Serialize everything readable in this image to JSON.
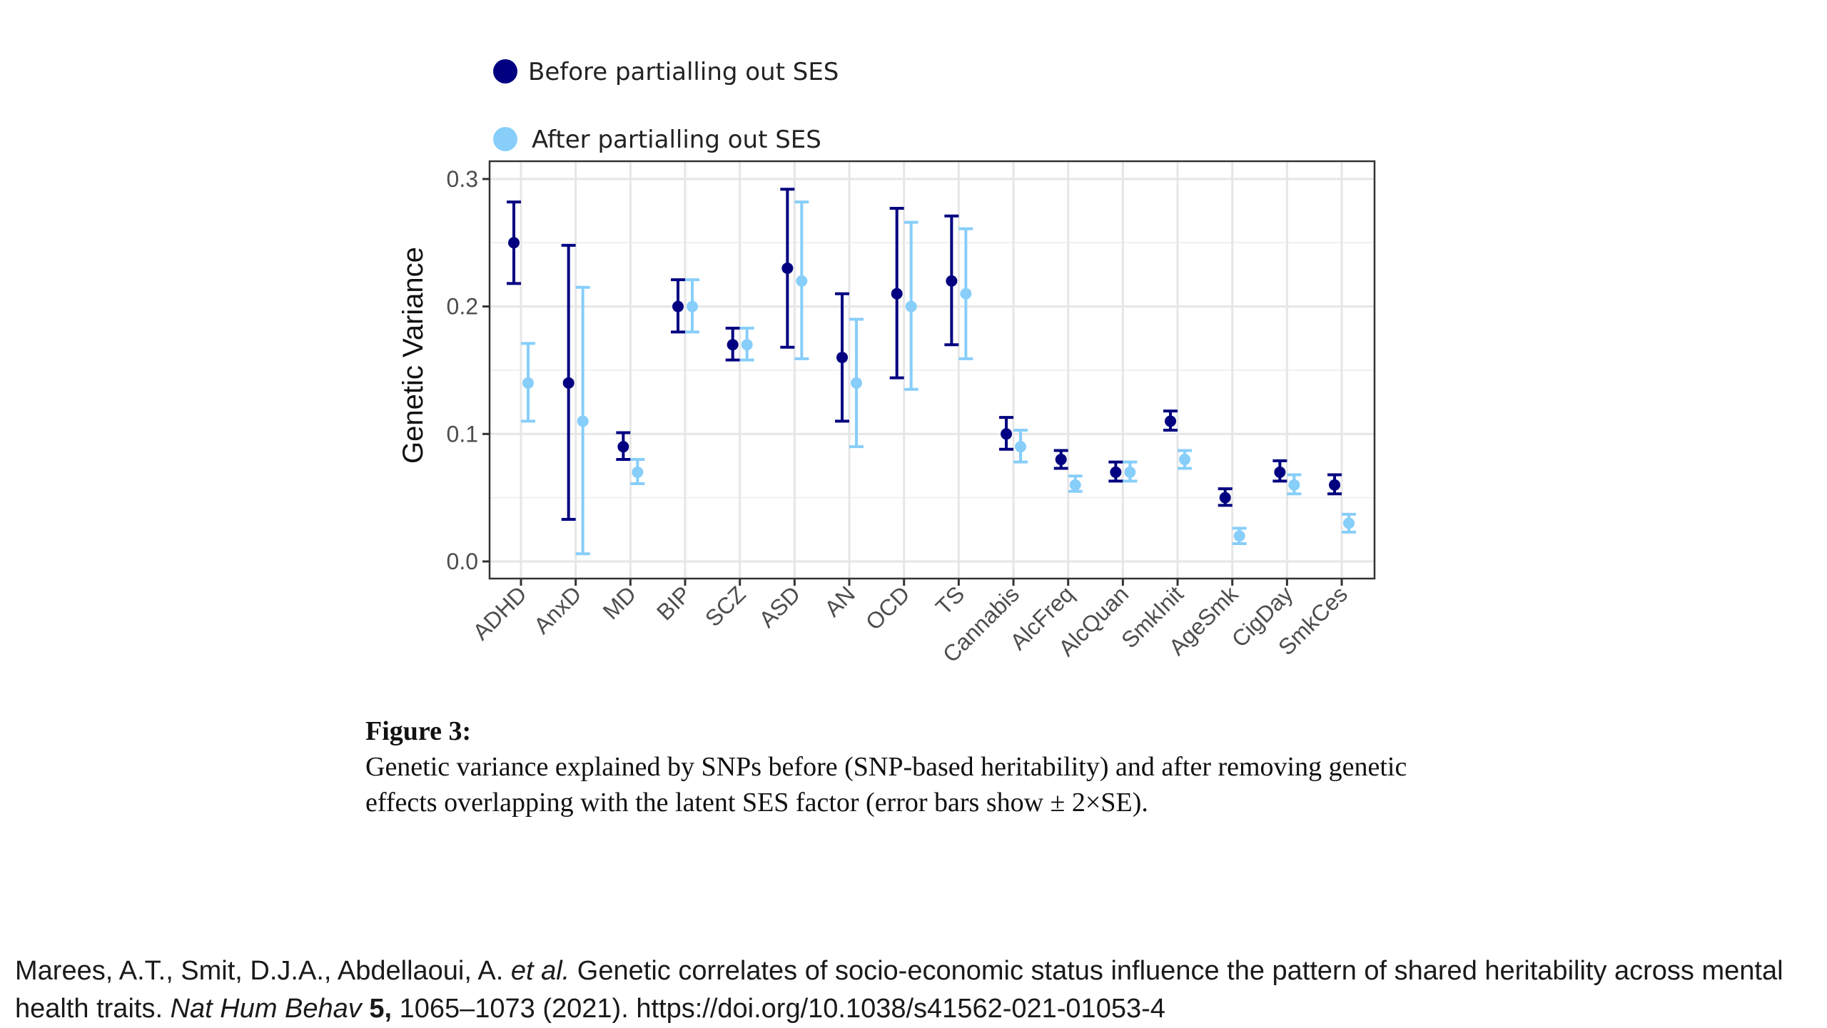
{
  "legend": {
    "items": [
      {
        "label": "Before partialling out SES",
        "color": "#000080"
      },
      {
        "label": "After partialling out SES",
        "color": "#87cefa"
      }
    ]
  },
  "chart_data": {
    "type": "scatter",
    "subtype": "point-with-errorbars",
    "title": "",
    "xlabel": "",
    "ylabel": "Genetic Variance",
    "ylim": [
      0.0,
      0.3
    ],
    "yticks": [
      0.0,
      0.1,
      0.2,
      0.3
    ],
    "ytick_labels": [
      "0.0",
      "0.1",
      "0.2",
      "0.3"
    ],
    "grid": true,
    "legend_position": "top-left (above plot)",
    "categories": [
      "ADHD",
      "AnxD",
      "MD",
      "BIP",
      "SCZ",
      "ASD",
      "AN",
      "OCD",
      "TS",
      "Cannabis",
      "AlcFreq",
      "AlcQuan",
      "SmkInit",
      "AgeSmk",
      "CigDay",
      "SmkCes"
    ],
    "series": [
      {
        "name": "Before partialling out SES",
        "color": "#000080",
        "values": [
          0.25,
          0.14,
          0.09,
          0.2,
          0.17,
          0.23,
          0.16,
          0.21,
          0.22,
          0.1,
          0.08,
          0.07,
          0.11,
          0.05,
          0.07,
          0.06
        ],
        "lower": [
          0.218,
          0.033,
          0.08,
          0.18,
          0.158,
          0.168,
          0.11,
          0.144,
          0.17,
          0.088,
          0.073,
          0.063,
          0.103,
          0.044,
          0.063,
          0.053
        ],
        "upper": [
          0.282,
          0.248,
          0.101,
          0.221,
          0.183,
          0.292,
          0.21,
          0.277,
          0.271,
          0.113,
          0.087,
          0.078,
          0.118,
          0.057,
          0.079,
          0.068
        ]
      },
      {
        "name": "After partialling out SES",
        "color": "#87cefa",
        "values": [
          0.14,
          0.11,
          0.07,
          0.2,
          0.17,
          0.22,
          0.14,
          0.2,
          0.21,
          0.09,
          0.06,
          0.07,
          0.08,
          0.02,
          0.06,
          0.03
        ],
        "lower": [
          0.11,
          0.006,
          0.061,
          0.18,
          0.158,
          0.159,
          0.09,
          0.135,
          0.159,
          0.078,
          0.055,
          0.063,
          0.073,
          0.014,
          0.053,
          0.023
        ],
        "upper": [
          0.171,
          0.215,
          0.08,
          0.221,
          0.183,
          0.282,
          0.19,
          0.266,
          0.261,
          0.103,
          0.067,
          0.078,
          0.087,
          0.026,
          0.068,
          0.037
        ]
      }
    ],
    "error_bars": "± 2×SE"
  },
  "caption": {
    "label": "Figure 3:",
    "text": "Genetic variance explained by SNPs before (SNP-based heritability) and after removing genetic effects overlapping with the latent SES factor (error bars show ± 2×SE)."
  },
  "citation": {
    "authors": "Marees, A.T., Smit, D.J.A., Abdellaoui, A. ",
    "etal": "et al.",
    "title": " Genetic correlates of socio-economic status influence the pattern of shared heritability across mental health traits. ",
    "journal": "Nat Hum Behav",
    "volume": " 5,",
    "pages_year": " 1065–1073 (2021). ",
    "doi": "https://doi.org/10.1038/s41562-021-01053-4"
  }
}
